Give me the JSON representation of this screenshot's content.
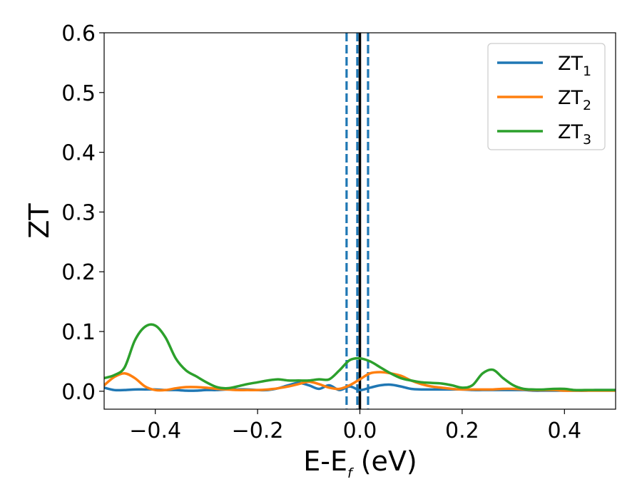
{
  "chart_data": {
    "type": "line",
    "xlabel": "E-E",
    "xlabel_sub": "f",
    "xlabel_unit": " (eV)",
    "ylabel": "ZT",
    "xlim": [
      -0.5,
      0.5
    ],
    "ylim": [
      -0.03,
      0.6
    ],
    "xticks": [
      -0.4,
      -0.2,
      0.0,
      0.2,
      0.4
    ],
    "xtick_labels": [
      "−0.4",
      "−0.2",
      "0.0",
      "0.2",
      "0.4"
    ],
    "yticks": [
      0.0,
      0.1,
      0.2,
      0.3,
      0.4,
      0.5,
      0.6
    ],
    "ytick_labels": [
      "0.0",
      "0.1",
      "0.2",
      "0.3",
      "0.4",
      "0.5",
      "0.6"
    ],
    "grid": false,
    "legend_position": "top-right",
    "vlines": [
      {
        "x": -0.026,
        "style": "dashed",
        "color": "#1f77b4"
      },
      {
        "x": -0.005,
        "style": "dashed",
        "color": "#1f77b4"
      },
      {
        "x": 0.0,
        "style": "solid",
        "color": "#000000"
      },
      {
        "x": 0.016,
        "style": "dashed",
        "color": "#1f77b4"
      }
    ],
    "series": [
      {
        "name": "ZT",
        "sub": "1",
        "color": "#1f77b4",
        "x": [
          -0.5,
          -0.48,
          -0.46,
          -0.44,
          -0.42,
          -0.4,
          -0.38,
          -0.36,
          -0.34,
          -0.32,
          -0.3,
          -0.28,
          -0.26,
          -0.24,
          -0.22,
          -0.2,
          -0.18,
          -0.16,
          -0.14,
          -0.12,
          -0.1,
          -0.08,
          -0.06,
          -0.04,
          -0.02,
          0.0,
          0.02,
          0.04,
          0.06,
          0.08,
          0.1,
          0.12,
          0.14,
          0.16,
          0.18,
          0.2,
          0.22,
          0.24,
          0.26,
          0.28,
          0.3,
          0.32,
          0.34,
          0.36,
          0.38,
          0.4,
          0.42,
          0.44,
          0.46,
          0.48,
          0.5
        ],
        "y": [
          0.006,
          0.002,
          0.002,
          0.003,
          0.003,
          0.003,
          0.002,
          0.002,
          0.001,
          0.001,
          0.002,
          0.002,
          0.003,
          0.003,
          0.003,
          0.002,
          0.002,
          0.005,
          0.01,
          0.014,
          0.01,
          0.004,
          0.01,
          0.002,
          0.008,
          0.002,
          0.006,
          0.01,
          0.011,
          0.008,
          0.004,
          0.003,
          0.003,
          0.003,
          0.003,
          0.003,
          0.002,
          0.002,
          0.002,
          0.002,
          0.002,
          0.002,
          0.001,
          0.001,
          0.001,
          0.001,
          0.001,
          0.001,
          0.002,
          0.002,
          0.002
        ]
      },
      {
        "name": "ZT",
        "sub": "2",
        "color": "#ff7f0e",
        "x": [
          -0.5,
          -0.48,
          -0.46,
          -0.44,
          -0.42,
          -0.4,
          -0.38,
          -0.36,
          -0.34,
          -0.32,
          -0.3,
          -0.28,
          -0.26,
          -0.24,
          -0.22,
          -0.2,
          -0.18,
          -0.16,
          -0.14,
          -0.12,
          -0.1,
          -0.08,
          -0.06,
          -0.04,
          -0.02,
          0.0,
          0.02,
          0.04,
          0.06,
          0.08,
          0.1,
          0.12,
          0.14,
          0.16,
          0.18,
          0.2,
          0.22,
          0.24,
          0.26,
          0.28,
          0.3,
          0.32,
          0.34,
          0.36,
          0.38,
          0.4,
          0.42,
          0.44,
          0.46,
          0.48,
          0.5
        ],
        "y": [
          0.01,
          0.024,
          0.03,
          0.022,
          0.008,
          0.002,
          0.002,
          0.005,
          0.007,
          0.007,
          0.006,
          0.004,
          0.003,
          0.002,
          0.002,
          0.002,
          0.003,
          0.005,
          0.008,
          0.012,
          0.016,
          0.012,
          0.006,
          0.004,
          0.01,
          0.02,
          0.03,
          0.032,
          0.03,
          0.026,
          0.018,
          0.012,
          0.008,
          0.006,
          0.004,
          0.003,
          0.003,
          0.003,
          0.003,
          0.004,
          0.004,
          0.003,
          0.002,
          0.002,
          0.002,
          0.001,
          0.001,
          0.001,
          0.001,
          0.001,
          0.001
        ]
      },
      {
        "name": "ZT",
        "sub": "3",
        "color": "#2ca02c",
        "x": [
          -0.5,
          -0.48,
          -0.46,
          -0.44,
          -0.42,
          -0.4,
          -0.38,
          -0.36,
          -0.34,
          -0.32,
          -0.3,
          -0.28,
          -0.26,
          -0.24,
          -0.22,
          -0.2,
          -0.18,
          -0.16,
          -0.14,
          -0.12,
          -0.1,
          -0.08,
          -0.06,
          -0.04,
          -0.02,
          0.0,
          0.02,
          0.04,
          0.06,
          0.08,
          0.1,
          0.12,
          0.14,
          0.16,
          0.18,
          0.2,
          0.22,
          0.24,
          0.26,
          0.28,
          0.3,
          0.32,
          0.34,
          0.36,
          0.38,
          0.4,
          0.42,
          0.44,
          0.46,
          0.48,
          0.5
        ],
        "y": [
          0.022,
          0.027,
          0.04,
          0.085,
          0.108,
          0.11,
          0.09,
          0.055,
          0.035,
          0.025,
          0.015,
          0.007,
          0.005,
          0.008,
          0.012,
          0.015,
          0.018,
          0.02,
          0.018,
          0.018,
          0.018,
          0.02,
          0.02,
          0.035,
          0.052,
          0.055,
          0.05,
          0.04,
          0.03,
          0.022,
          0.018,
          0.015,
          0.014,
          0.013,
          0.01,
          0.006,
          0.01,
          0.03,
          0.036,
          0.022,
          0.01,
          0.004,
          0.003,
          0.003,
          0.004,
          0.004,
          0.002,
          0.002,
          0.002,
          0.002,
          0.002
        ]
      }
    ]
  }
}
